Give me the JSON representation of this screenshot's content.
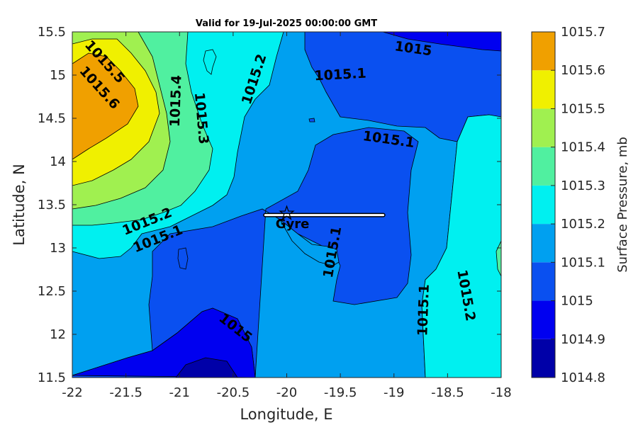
{
  "chart_data": {
    "type": "contour",
    "title": "Valid for 19-Jul-2025 00:00:00 GMT",
    "xlabel": "Longitude, E",
    "ylabel": "Latitude, N",
    "xlim": [
      -22,
      -18
    ],
    "ylim": [
      11.5,
      15.5
    ],
    "xticks": [
      "-22",
      "-21.5",
      "-21",
      "-20.5",
      "-20",
      "-19.5",
      "-19",
      "-18.5",
      "-18"
    ],
    "yticks": [
      "11.5",
      "12",
      "12.5",
      "13",
      "13.5",
      "14",
      "14.5",
      "15",
      "15.5"
    ],
    "colorbar": {
      "label": "Surface Pressure, mb",
      "levels": [
        1014.8,
        1014.9,
        1015.0,
        1015.1,
        1015.2,
        1015.3,
        1015.4,
        1015.5,
        1015.6,
        1015.7
      ],
      "tick_labels": [
        "1014.8",
        "1014.9",
        "1015",
        "1015.1",
        "1015.2",
        "1015.3",
        "1015.4",
        "1015.5",
        "1015.6",
        "1015.7"
      ],
      "colors": [
        "#0000a8",
        "#0000f0",
        "#0a50f0",
        "#00a0f0",
        "#00f0f0",
        "#50f0a0",
        "#a0f050",
        "#f0f000",
        "#f0a000",
        "#f05000"
      ]
    },
    "contour_labels": [
      {
        "text": "1015.5",
        "lon": -21.7,
        "lat": 15.15,
        "rotate": 48
      },
      {
        "text": "1015.6",
        "lon": -21.75,
        "lat": 14.85,
        "rotate": 48
      },
      {
        "text": "1015.4",
        "lon": -21.03,
        "lat": 14.7,
        "rotate": -88
      },
      {
        "text": "1015.3",
        "lon": -20.8,
        "lat": 14.5,
        "rotate": 85
      },
      {
        "text": "1015.2",
        "lon": -20.3,
        "lat": 14.95,
        "rotate": -72
      },
      {
        "text": "1015",
        "lon": -18.82,
        "lat": 15.3,
        "rotate": 8
      },
      {
        "text": "1015.1",
        "lon": -19.5,
        "lat": 15.0,
        "rotate": -3
      },
      {
        "text": "1015.1",
        "lon": -19.05,
        "lat": 14.25,
        "rotate": 8
      },
      {
        "text": "1015.2",
        "lon": -21.3,
        "lat": 13.3,
        "rotate": -22
      },
      {
        "text": "1015.1",
        "lon": -21.2,
        "lat": 13.1,
        "rotate": -22
      },
      {
        "text": "1015.1",
        "lon": -19.57,
        "lat": 12.95,
        "rotate": -80
      },
      {
        "text": "1015.1",
        "lon": -18.72,
        "lat": 12.28,
        "rotate": -88
      },
      {
        "text": "1015.2",
        "lon": -18.33,
        "lat": 12.45,
        "rotate": 80
      },
      {
        "text": "1015",
        "lon": -20.48,
        "lat": 12.07,
        "rotate": 38
      }
    ],
    "track": {
      "start": [
        -20.2,
        13.38
      ],
      "end": [
        -19.1,
        13.38
      ]
    },
    "marker": {
      "label": "Gyre",
      "lon": -20.0,
      "lat": 13.4
    }
  }
}
